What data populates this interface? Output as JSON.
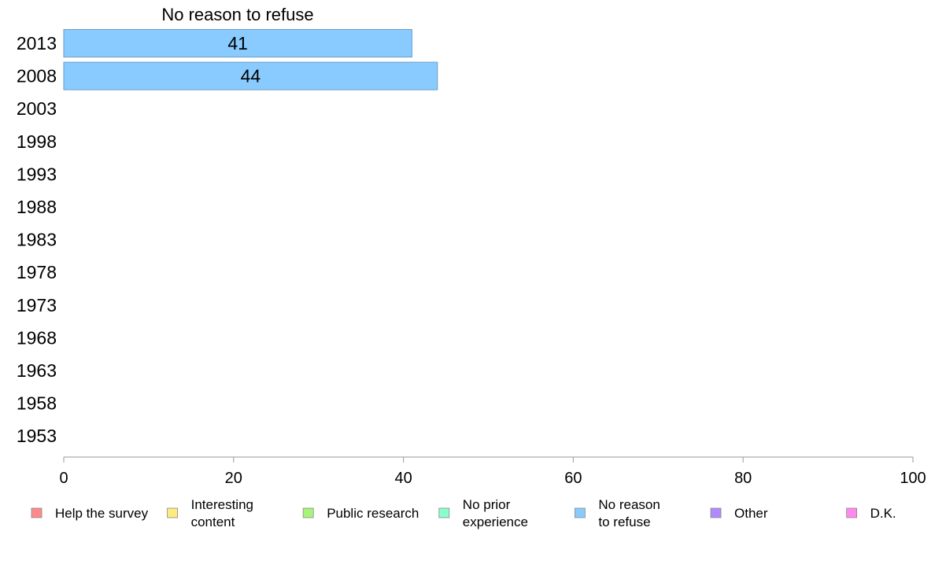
{
  "chart_data": {
    "type": "bar",
    "orientation": "horizontal",
    "title": "No reason to refuse",
    "categories": [
      "2013",
      "2008",
      "2003",
      "1998",
      "1993",
      "1988",
      "1983",
      "1978",
      "1973",
      "1968",
      "1963",
      "1958",
      "1953"
    ],
    "series": [
      {
        "name": "No reason to refuse",
        "values": [
          41,
          44,
          null,
          null,
          null,
          null,
          null,
          null,
          null,
          null,
          null,
          null,
          null
        ],
        "data_labels": [
          "41",
          "44"
        ]
      }
    ],
    "xlim": [
      0,
      100
    ],
    "x_ticks": [
      "0",
      "20",
      "40",
      "60",
      "80",
      "100"
    ],
    "grid": false,
    "legend_position": "bottom",
    "legend": [
      {
        "lines": [
          "Help the survey"
        ],
        "color": "#ff8a8a"
      },
      {
        "lines": [
          "Interesting",
          "content"
        ],
        "color": "#ffea80"
      },
      {
        "lines": [
          "Public research"
        ],
        "color": "#a6f57a"
      },
      {
        "lines": [
          "No prior",
          "experience"
        ],
        "color": "#8affcc"
      },
      {
        "lines": [
          "No reason",
          "to refuse"
        ],
        "color": "#8acbff"
      },
      {
        "lines": [
          "Other"
        ],
        "color": "#b08aff"
      },
      {
        "lines": [
          "D.K."
        ],
        "color": "#ff8aee"
      }
    ],
    "bar_color": "#8acbff",
    "bar_edge_color": "#6a9ec8",
    "axis_color": "#aaaaaa"
  }
}
